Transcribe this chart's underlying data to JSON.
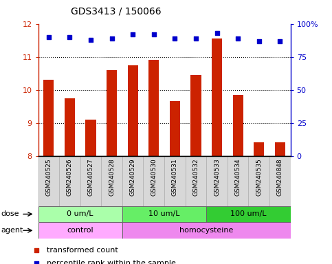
{
  "title": "GDS3413 / 150066",
  "samples": [
    "GSM240525",
    "GSM240526",
    "GSM240527",
    "GSM240528",
    "GSM240529",
    "GSM240530",
    "GSM240531",
    "GSM240532",
    "GSM240533",
    "GSM240534",
    "GSM240535",
    "GSM240848"
  ],
  "bar_values": [
    10.3,
    9.75,
    9.1,
    10.6,
    10.75,
    10.9,
    9.65,
    10.45,
    11.55,
    9.85,
    8.4,
    8.4
  ],
  "dot_values": [
    90,
    90,
    88,
    89,
    92,
    92,
    89,
    89,
    93,
    89,
    87,
    87
  ],
  "ylim": [
    8,
    12
  ],
  "y2lim": [
    0,
    100
  ],
  "yticks": [
    8,
    9,
    10,
    11,
    12
  ],
  "y2ticks": [
    0,
    25,
    50,
    75,
    100
  ],
  "bar_color": "#cc2200",
  "dot_color": "#0000cc",
  "bar_bottom": 8,
  "dose_groups": [
    {
      "label": "0 um/L",
      "start": 0,
      "end": 4,
      "color": "#aaffaa"
    },
    {
      "label": "10 um/L",
      "start": 4,
      "end": 8,
      "color": "#66ee66"
    },
    {
      "label": "100 um/L",
      "start": 8,
      "end": 12,
      "color": "#33cc33"
    }
  ],
  "agent_groups": [
    {
      "label": "control",
      "start": 0,
      "end": 4,
      "color": "#ffaaff"
    },
    {
      "label": "homocysteine",
      "start": 4,
      "end": 12,
      "color": "#ee88ee"
    }
  ],
  "dose_label": "dose",
  "agent_label": "agent",
  "legend_bar": "transformed count",
  "legend_dot": "percentile rank within the sample",
  "axis_label_color_left": "#cc2200",
  "axis_label_color_right": "#0000cc"
}
